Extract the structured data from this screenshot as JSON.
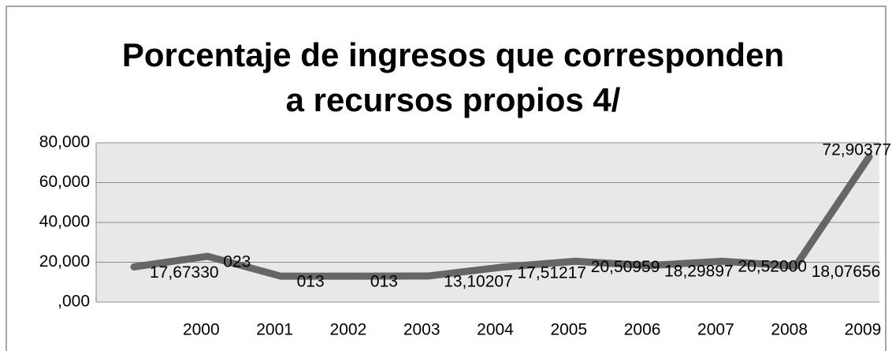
{
  "chart_data": {
    "type": "line",
    "title": "Porcentaje de ingresos que corresponden a recursos propios 4/",
    "categories": [
      null,
      "2000",
      "2001",
      "2002",
      "2003",
      "2004",
      "2005",
      "2006",
      "2007",
      "2008",
      "2009"
    ],
    "values": [
      17.6733,
      23,
      13,
      13,
      13.10207,
      17.51217,
      20.50959,
      18.29897,
      20.52,
      18.07656,
      72.90377
    ],
    "value_labels": [
      "17,67330",
      "023",
      "013",
      "013",
      "13,10207",
      "17,51217",
      "20,50959",
      "18,29897",
      "20,52000",
      "18,07656",
      "72,90377"
    ],
    "color": "#666666",
    "ylim": [
      0,
      80
    ],
    "yticks": [
      {
        "value": 0,
        "label": ",000"
      },
      {
        "value": 20,
        "label": "20,000"
      },
      {
        "value": 40,
        "label": "40,000"
      },
      {
        "value": 60,
        "label": "60,000"
      },
      {
        "value": 80,
        "label": "80,000"
      }
    ],
    "grid": true
  }
}
